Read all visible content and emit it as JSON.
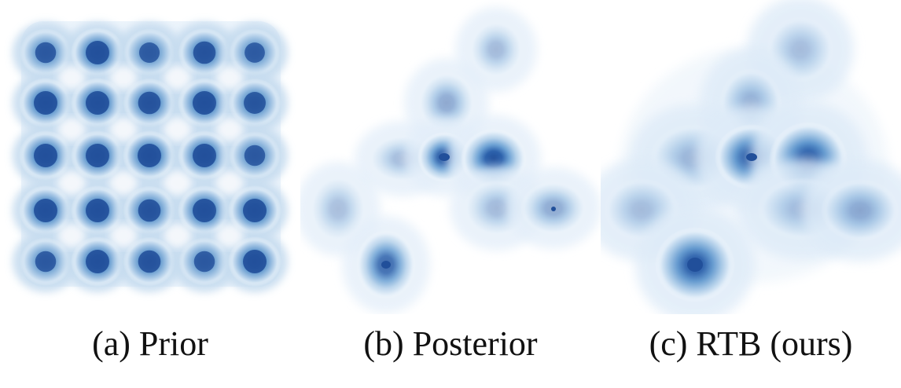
{
  "panels": [
    {
      "caption": "(a) Prior",
      "kind": "prior-grid-density"
    },
    {
      "caption": "(b) Posterior",
      "kind": "sparse-posterior-density"
    },
    {
      "caption": "(c) RTB (ours)",
      "kind": "rtb-sampled-density"
    }
  ],
  "colors": {
    "background": "#ffffff",
    "deep_blue": "#2a5ca8",
    "mid_blue": "#5e95cd",
    "light_blue": "#b8d2ea",
    "pale_blue": "#eaf2fa"
  }
}
